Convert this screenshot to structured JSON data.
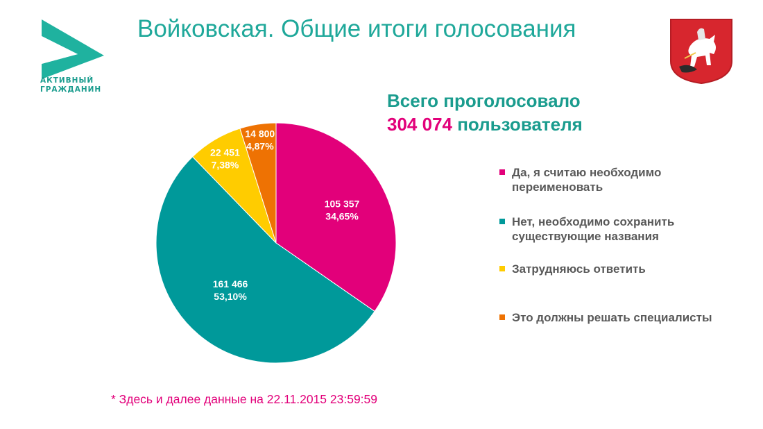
{
  "logo": {
    "line1": "АКТИВНЫЙ",
    "line2": "ГРАЖДАНИН"
  },
  "title": "Войковская. Общие итоги голосования",
  "total": {
    "prefix": "Всего проголосовало",
    "count": "304 074",
    "suffix": "пользователя"
  },
  "footnote": "* Здесь и далее данные на 22.11.2015 23:59:59",
  "colors": {
    "magenta": "#e2007a",
    "teal": "#00999a",
    "yellow": "#ffcc00",
    "orange": "#ee7203"
  },
  "chart_data": {
    "type": "pie",
    "slices": [
      {
        "name": "Да, я считаю необходимо переименовать",
        "value": 105357,
        "value_label": "105 357",
        "percent_label": "34,65%",
        "percent": 34.65,
        "color": "#e2007a"
      },
      {
        "name": "Нет, необходимо сохранить существующие названия",
        "value": 161466,
        "value_label": "161 466",
        "percent_label": "53,10%",
        "percent": 53.1,
        "color": "#00999a"
      },
      {
        "name": "Затрудняюсь ответить",
        "value": 22451,
        "value_label": "22 451",
        "percent_label": "7,38%",
        "percent": 7.38,
        "color": "#ffcc00"
      },
      {
        "name": "Это должны решать специалисты",
        "value": 14800,
        "value_label": "14 800",
        "percent_label": "4,87%",
        "percent": 4.87,
        "color": "#ee7203"
      }
    ],
    "legend_position": "right"
  }
}
